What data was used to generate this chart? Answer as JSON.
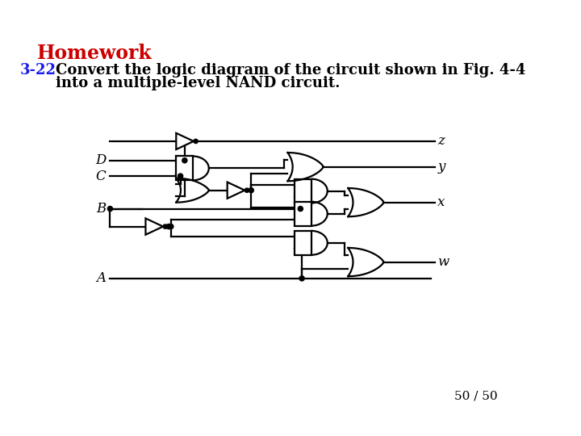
{
  "title": "Homework",
  "title_color": "#cc0000",
  "problem_label": "3-22",
  "problem_label_color": "#1a1aee",
  "page_number": "50 / 50",
  "background_color": "#ffffff",
  "gate_color": "#000000",
  "lw": 1.6
}
